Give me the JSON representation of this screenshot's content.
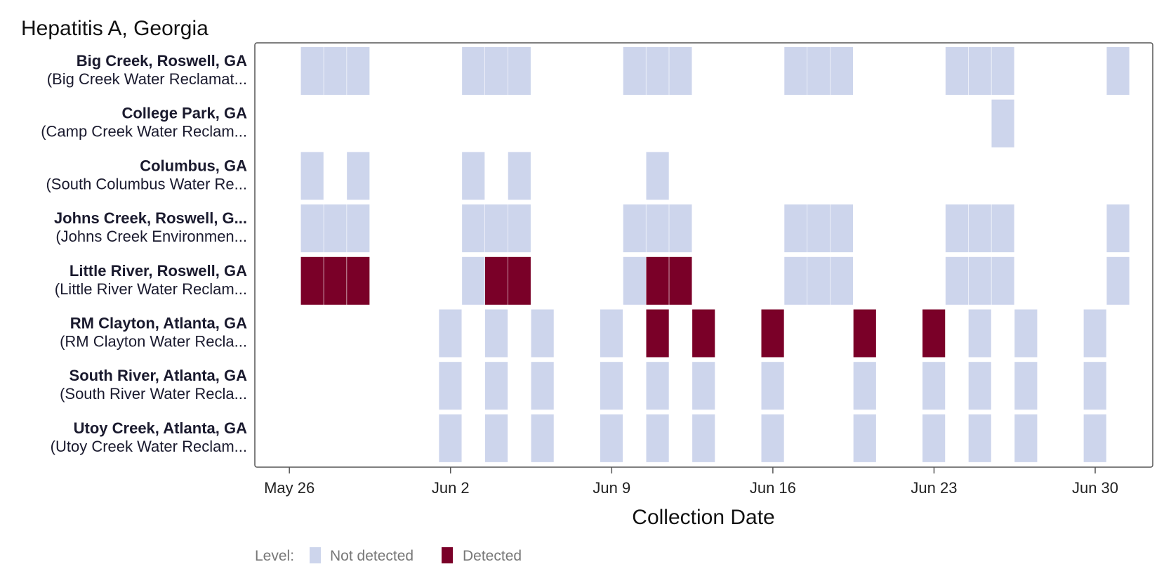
{
  "chart_data": {
    "type": "heatmap",
    "title": "Hepatitis A, Georgia",
    "xlabel": "Collection Date",
    "x_axis": {
      "type": "date",
      "ticks": [
        "May 26",
        "Jun 2",
        "Jun 9",
        "Jun 16",
        "Jun 23",
        "Jun 30"
      ],
      "range": [
        "May 25",
        "Jul 3"
      ]
    },
    "levels": [
      {
        "name": "Not detected",
        "color": "#cdd5ec"
      },
      {
        "name": "Detected",
        "color": "#7a0028"
      }
    ],
    "legend": {
      "label": "Level:",
      "position": "bottom-left"
    },
    "rows": [
      {
        "name": "Big Creek, Roswell, GA",
        "sub": "(Big Creek Water Reclamat...",
        "samples": [
          [
            "May 27",
            "Not detected"
          ],
          [
            "May 28",
            "Not detected"
          ],
          [
            "May 29",
            "Not detected"
          ],
          [
            "Jun 3",
            "Not detected"
          ],
          [
            "Jun 4",
            "Not detected"
          ],
          [
            "Jun 5",
            "Not detected"
          ],
          [
            "Jun 10",
            "Not detected"
          ],
          [
            "Jun 11",
            "Not detected"
          ],
          [
            "Jun 12",
            "Not detected"
          ],
          [
            "Jun 17",
            "Not detected"
          ],
          [
            "Jun 18",
            "Not detected"
          ],
          [
            "Jun 19",
            "Not detected"
          ],
          [
            "Jun 24",
            "Not detected"
          ],
          [
            "Jun 25",
            "Not detected"
          ],
          [
            "Jun 26",
            "Not detected"
          ],
          [
            "Jul 1",
            "Not detected"
          ]
        ]
      },
      {
        "name": "College Park, GA",
        "sub": "(Camp Creek Water Reclam...",
        "samples": [
          [
            "Jun 26",
            "Not detected"
          ]
        ]
      },
      {
        "name": "Columbus, GA",
        "sub": "(South Columbus Water Re...",
        "samples": [
          [
            "May 27",
            "Not detected"
          ],
          [
            "May 29",
            "Not detected"
          ],
          [
            "Jun 3",
            "Not detected"
          ],
          [
            "Jun 5",
            "Not detected"
          ],
          [
            "Jun 11",
            "Not detected"
          ]
        ]
      },
      {
        "name": "Johns Creek, Roswell, G...",
        "sub": "(Johns Creek Environmen...",
        "samples": [
          [
            "May 27",
            "Not detected"
          ],
          [
            "May 28",
            "Not detected"
          ],
          [
            "May 29",
            "Not detected"
          ],
          [
            "Jun 3",
            "Not detected"
          ],
          [
            "Jun 4",
            "Not detected"
          ],
          [
            "Jun 5",
            "Not detected"
          ],
          [
            "Jun 10",
            "Not detected"
          ],
          [
            "Jun 11",
            "Not detected"
          ],
          [
            "Jun 12",
            "Not detected"
          ],
          [
            "Jun 17",
            "Not detected"
          ],
          [
            "Jun 18",
            "Not detected"
          ],
          [
            "Jun 19",
            "Not detected"
          ],
          [
            "Jun 24",
            "Not detected"
          ],
          [
            "Jun 25",
            "Not detected"
          ],
          [
            "Jun 26",
            "Not detected"
          ],
          [
            "Jul 1",
            "Not detected"
          ]
        ]
      },
      {
        "name": "Little River, Roswell, GA",
        "sub": "(Little River Water Reclam...",
        "samples": [
          [
            "May 27",
            "Detected"
          ],
          [
            "May 28",
            "Detected"
          ],
          [
            "May 29",
            "Detected"
          ],
          [
            "Jun 3",
            "Not detected"
          ],
          [
            "Jun 4",
            "Detected"
          ],
          [
            "Jun 5",
            "Detected"
          ],
          [
            "Jun 10",
            "Not detected"
          ],
          [
            "Jun 11",
            "Detected"
          ],
          [
            "Jun 12",
            "Detected"
          ],
          [
            "Jun 17",
            "Not detected"
          ],
          [
            "Jun 18",
            "Not detected"
          ],
          [
            "Jun 19",
            "Not detected"
          ],
          [
            "Jun 24",
            "Not detected"
          ],
          [
            "Jun 25",
            "Not detected"
          ],
          [
            "Jun 26",
            "Not detected"
          ],
          [
            "Jul 1",
            "Not detected"
          ]
        ]
      },
      {
        "name": "RM Clayton, Atlanta, GA",
        "sub": "(RM Clayton Water Recla...",
        "samples": [
          [
            "Jun 2",
            "Not detected"
          ],
          [
            "Jun 4",
            "Not detected"
          ],
          [
            "Jun 6",
            "Not detected"
          ],
          [
            "Jun 9",
            "Not detected"
          ],
          [
            "Jun 11",
            "Detected"
          ],
          [
            "Jun 13",
            "Detected"
          ],
          [
            "Jun 16",
            "Detected"
          ],
          [
            "Jun 20",
            "Detected"
          ],
          [
            "Jun 23",
            "Detected"
          ],
          [
            "Jun 25",
            "Not detected"
          ],
          [
            "Jun 27",
            "Not detected"
          ],
          [
            "Jun 30",
            "Not detected"
          ]
        ]
      },
      {
        "name": "South River, Atlanta, GA",
        "sub": "(South River Water Recla...",
        "samples": [
          [
            "Jun 2",
            "Not detected"
          ],
          [
            "Jun 4",
            "Not detected"
          ],
          [
            "Jun 6",
            "Not detected"
          ],
          [
            "Jun 9",
            "Not detected"
          ],
          [
            "Jun 11",
            "Not detected"
          ],
          [
            "Jun 13",
            "Not detected"
          ],
          [
            "Jun 16",
            "Not detected"
          ],
          [
            "Jun 20",
            "Not detected"
          ],
          [
            "Jun 23",
            "Not detected"
          ],
          [
            "Jun 25",
            "Not detected"
          ],
          [
            "Jun 27",
            "Not detected"
          ],
          [
            "Jun 30",
            "Not detected"
          ]
        ]
      },
      {
        "name": "Utoy Creek, Atlanta, GA",
        "sub": "(Utoy Creek Water Reclam...",
        "samples": [
          [
            "Jun 2",
            "Not detected"
          ],
          [
            "Jun 4",
            "Not detected"
          ],
          [
            "Jun 6",
            "Not detected"
          ],
          [
            "Jun 9",
            "Not detected"
          ],
          [
            "Jun 11",
            "Not detected"
          ],
          [
            "Jun 13",
            "Not detected"
          ],
          [
            "Jun 16",
            "Not detected"
          ],
          [
            "Jun 20",
            "Not detected"
          ],
          [
            "Jun 23",
            "Not detected"
          ],
          [
            "Jun 25",
            "Not detected"
          ],
          [
            "Jun 27",
            "Not detected"
          ],
          [
            "Jun 30",
            "Not detected"
          ]
        ]
      }
    ]
  }
}
